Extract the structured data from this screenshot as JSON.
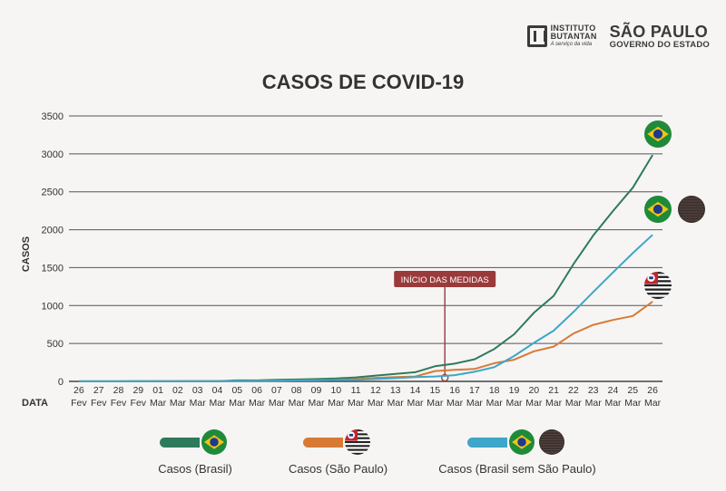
{
  "logos": {
    "butantan_line1": "INSTITUTO",
    "butantan_line2": "BUTANTAN",
    "butantan_tagline": "A serviço da vida",
    "sp_line1": "SÃO PAULO",
    "sp_line2": "GOVERNO DO ESTADO"
  },
  "chart_data": {
    "type": "line",
    "title": "CASOS DE COVID-19",
    "ylabel": "CASOS",
    "xlabel": "DATA",
    "ylim": [
      0,
      3500
    ],
    "yticks": [
      0,
      500,
      1000,
      1500,
      2000,
      2500,
      3000,
      3500
    ],
    "grid": true,
    "legend_position": "bottom",
    "categories": [
      "26 Fev",
      "27 Fev",
      "28 Fev",
      "29 Fev",
      "01 Mar",
      "02 Mar",
      "03 Mar",
      "04 Mar",
      "05 Mar",
      "06 Mar",
      "07 Mar",
      "08 Mar",
      "09 Mar",
      "10 Mar",
      "11 Mar",
      "12 Mar",
      "13 Mar",
      "14 Mar",
      "15 Mar",
      "16 Mar",
      "17 Mar",
      "18 Mar",
      "19 Mar",
      "20 Mar",
      "21 Mar",
      "22 Mar",
      "23 Mar",
      "24 Mar",
      "25 Mar",
      "26 Mar"
    ],
    "tick_days": [
      "26",
      "27",
      "28",
      "29",
      "01",
      "02",
      "03",
      "04",
      "05",
      "06",
      "07",
      "08",
      "09",
      "10",
      "11",
      "12",
      "13",
      "14",
      "15",
      "16",
      "17",
      "18",
      "19",
      "20",
      "21",
      "22",
      "23",
      "24",
      "25",
      "26"
    ],
    "tick_months": [
      "Fev",
      "Fev",
      "Fev",
      "Fev",
      "Mar",
      "Mar",
      "Mar",
      "Mar",
      "Mar",
      "Mar",
      "Mar",
      "Mar",
      "Mar",
      "Mar",
      "Mar",
      "Mar",
      "Mar",
      "Mar",
      "Mar",
      "Mar",
      "Mar",
      "Mar",
      "Mar",
      "Mar",
      "Mar",
      "Mar",
      "Mar",
      "Mar",
      "Mar",
      "Mar"
    ],
    "series": [
      {
        "name": "Casos (Brasil)",
        "color": "#2e7a5c",
        "values": [
          1,
          1,
          1,
          2,
          2,
          2,
          4,
          4,
          13,
          13,
          20,
          25,
          31,
          38,
          52,
          77,
          98,
          121,
          200,
          234,
          291,
          428,
          621,
          904,
          1128,
          1546,
          1924,
          2247,
          2554,
          2985
        ]
      },
      {
        "name": "Casos (São Paulo)",
        "color": "#d87a35",
        "values": [
          1,
          1,
          1,
          1,
          2,
          2,
          3,
          3,
          6,
          8,
          10,
          13,
          16,
          19,
          30,
          46,
          56,
          65,
          136,
          152,
          164,
          240,
          286,
          396,
          459,
          631,
          745,
          810,
          862,
          1052
        ]
      },
      {
        "name": "Casos (Brasil sem São Paulo)",
        "color": "#3ea6c8",
        "values": [
          0,
          0,
          0,
          1,
          0,
          0,
          1,
          1,
          7,
          5,
          10,
          12,
          15,
          19,
          22,
          31,
          42,
          56,
          64,
          82,
          127,
          188,
          335,
          508,
          669,
          915,
          1179,
          1437,
          1692,
          1933
        ]
      }
    ],
    "annotation": {
      "text": "INÍCIO DAS MEDIDAS",
      "category_index": 19,
      "color": "#9b3a3a"
    }
  },
  "legend": [
    {
      "label": "Casos (Brasil)",
      "color": "#2e7a5c",
      "icons": [
        "brazil-flag-icon"
      ]
    },
    {
      "label": "Casos (São Paulo)",
      "color": "#d87a35",
      "icons": [
        "sp-flag-icon"
      ]
    },
    {
      "label": "Casos (Brasil sem São Paulo)",
      "color": "#3ea6c8",
      "icons": [
        "brazil-flag-icon",
        "no-sp-flag-icon"
      ]
    }
  ]
}
